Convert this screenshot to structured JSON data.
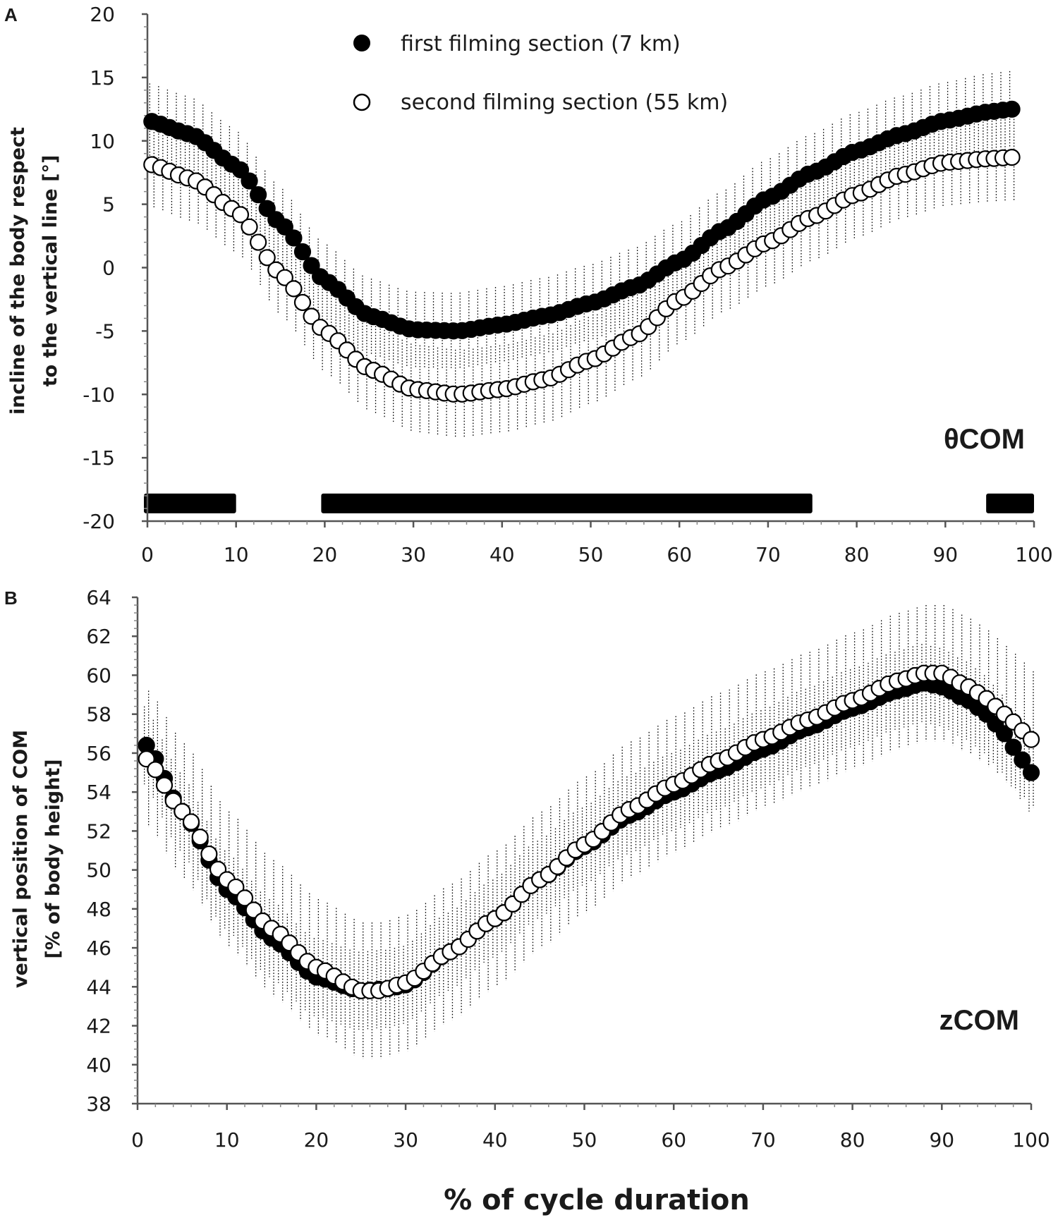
{
  "figure": {
    "xlabel": "% of cycle duration"
  },
  "legend": {
    "series1": "first filming section (7 km)",
    "series2": "second filming section (55 km)"
  },
  "chart_data": [
    {
      "panel": "A",
      "type": "scatter",
      "annotation": "θCOM",
      "ylabel_line1": "incline of the body respect",
      "ylabel_line2": "to the vertical line [°]",
      "xlim": [
        0,
        100
      ],
      "ylim": [
        -20,
        20
      ],
      "xticks": [
        0,
        10,
        20,
        30,
        40,
        50,
        60,
        70,
        80,
        90,
        100
      ],
      "yticks": [
        -20,
        -15,
        -10,
        -5,
        0,
        5,
        10,
        15,
        20
      ],
      "series": [
        {
          "name": "first filming section (7 km)",
          "marker": "filled",
          "keyframes": [
            [
              0,
              11.6
            ],
            [
              5,
              10.5
            ],
            [
              10,
              8
            ],
            [
              15,
              3.5
            ],
            [
              20,
              -1
            ],
            [
              25,
              -3.8
            ],
            [
              30,
              -4.9
            ],
            [
              35,
              -5
            ],
            [
              40,
              -4.5
            ],
            [
              45,
              -3.8
            ],
            [
              50,
              -2.8
            ],
            [
              55,
              -1.5
            ],
            [
              60,
              0.5
            ],
            [
              65,
              3
            ],
            [
              70,
              5.5
            ],
            [
              75,
              7.5
            ],
            [
              80,
              9.2
            ],
            [
              85,
              10.5
            ],
            [
              90,
              11.6
            ],
            [
              95,
              12.3
            ],
            [
              97.5,
              12.5
            ]
          ],
          "sd": 3
        },
        {
          "name": "second filming section (55 km)",
          "marker": "open",
          "keyframes": [
            [
              0,
              8.2
            ],
            [
              5,
              7
            ],
            [
              10,
              4.5
            ],
            [
              15,
              -0.5
            ],
            [
              20,
              -5
            ],
            [
              25,
              -8
            ],
            [
              30,
              -9.6
            ],
            [
              35,
              -10
            ],
            [
              40,
              -9.6
            ],
            [
              45,
              -8.8
            ],
            [
              50,
              -7.3
            ],
            [
              55,
              -5.4
            ],
            [
              60,
              -2.5
            ],
            [
              65,
              0
            ],
            [
              70,
              2
            ],
            [
              75,
              4
            ],
            [
              80,
              5.8
            ],
            [
              85,
              7.3
            ],
            [
              90,
              8.3
            ],
            [
              95,
              8.6
            ],
            [
              97.5,
              8.7
            ]
          ],
          "sd": 3.5
        }
      ],
      "bars": [
        [
          0,
          10
        ],
        [
          20,
          75
        ],
        [
          95,
          100
        ]
      ],
      "bar_y": -18.6
    },
    {
      "panel": "B",
      "type": "scatter",
      "annotation": "zCOM",
      "ylabel_line1": "vertical position of COM",
      "ylabel_line2": "[% of body height]",
      "xlim": [
        0,
        100
      ],
      "ylim": [
        38,
        64
      ],
      "xticks": [
        0,
        10,
        20,
        30,
        40,
        50,
        60,
        70,
        80,
        90,
        100
      ],
      "yticks": [
        38,
        40,
        42,
        44,
        46,
        48,
        50,
        52,
        54,
        56,
        58,
        60,
        62,
        64
      ],
      "series": [
        {
          "name": "first filming section (7 km)",
          "marker": "filled",
          "keyframes": [
            [
              1,
              56.4
            ],
            [
              5,
              53
            ],
            [
              10,
              49
            ],
            [
              15,
              46.5
            ],
            [
              20,
              44.5
            ],
            [
              25,
              43.8
            ],
            [
              28,
              43.9
            ],
            [
              30,
              44.1
            ],
            [
              35,
              45.8
            ],
            [
              40,
              47.5
            ],
            [
              45,
              49.5
            ],
            [
              50,
              51.2
            ],
            [
              55,
              52.8
            ],
            [
              60,
              54
            ],
            [
              65,
              55.1
            ],
            [
              70,
              56.2
            ],
            [
              75,
              57.3
            ],
            [
              80,
              58.3
            ],
            [
              85,
              59.2
            ],
            [
              88,
              59.6
            ],
            [
              90,
              59.4
            ],
            [
              93,
              58.7
            ],
            [
              95,
              58
            ],
            [
              97,
              57
            ],
            [
              98,
              56.3
            ],
            [
              100,
              55
            ]
          ],
          "sd": 2
        },
        {
          "name": "second filming section (55 km)",
          "marker": "open",
          "keyframes": [
            [
              1,
              55.7
            ],
            [
              5,
              53
            ],
            [
              10,
              49.5
            ],
            [
              15,
              47
            ],
            [
              20,
              45
            ],
            [
              25,
              43.8
            ],
            [
              27,
              43.8
            ],
            [
              30,
              44.2
            ],
            [
              35,
              45.8
            ],
            [
              40,
              47.5
            ],
            [
              45,
              49.5
            ],
            [
              50,
              51.3
            ],
            [
              55,
              53.1
            ],
            [
              60,
              54.4
            ],
            [
              65,
              55.6
            ],
            [
              70,
              56.7
            ],
            [
              75,
              57.7
            ],
            [
              80,
              58.7
            ],
            [
              85,
              59.7
            ],
            [
              88,
              60.1
            ],
            [
              90,
              60.1
            ],
            [
              93,
              59.4
            ],
            [
              95,
              58.8
            ],
            [
              97,
              58
            ],
            [
              98,
              57.6
            ],
            [
              100,
              56.7
            ]
          ],
          "sd": 3.5
        }
      ]
    }
  ]
}
